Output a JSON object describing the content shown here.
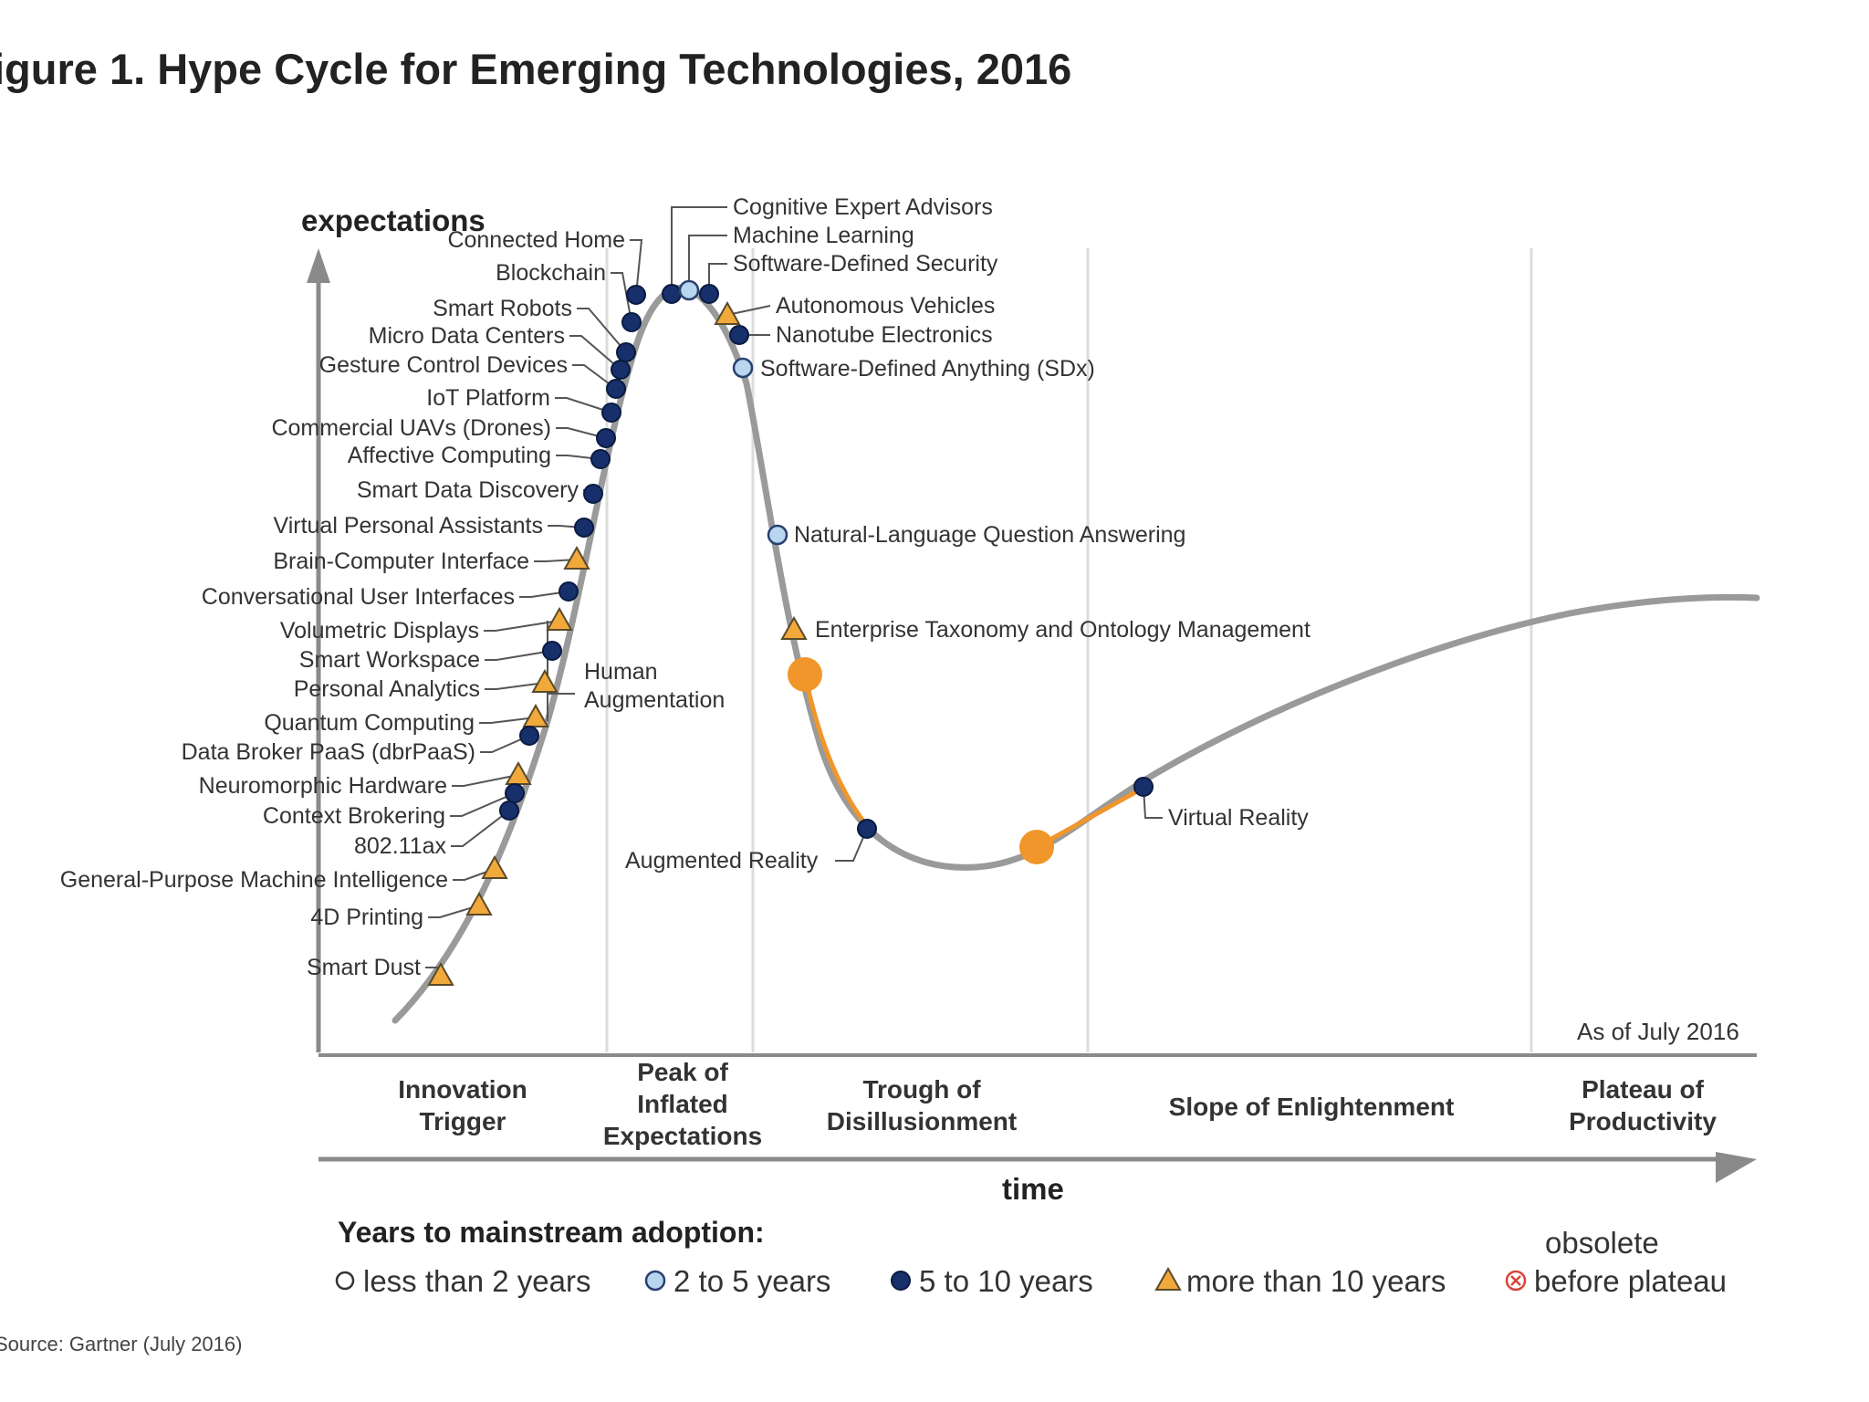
{
  "chart_data": {
    "type": "line",
    "title": "igure 1. Hype Cycle for Emerging Technologies, 2016",
    "ylabel": "expectations",
    "xlabel": "time",
    "as_of": "As of July 2016",
    "source": "Source: Gartner (July 2016)",
    "annotation_group": [
      "Human",
      "Augmentation"
    ],
    "phases": [
      {
        "lines": [
          "Innovation",
          "Trigger"
        ]
      },
      {
        "lines": [
          "Peak of",
          "Inflated",
          "Expectations"
        ]
      },
      {
        "lines": [
          "Trough of",
          "Disillusionment"
        ]
      },
      {
        "lines": [
          "Slope of Enlightenment"
        ]
      },
      {
        "lines": [
          "Plateau of",
          "Productivity"
        ]
      }
    ],
    "legend": {
      "title": "Years to mainstream adoption:",
      "items": [
        {
          "label": "less than 2 years",
          "marker": "hollow-circle"
        },
        {
          "label": "2 to 5 years",
          "marker": "light-circle"
        },
        {
          "label": "5 to 10 years",
          "marker": "dark-circle"
        },
        {
          "label": "more than 10 years",
          "marker": "triangle"
        },
        {
          "label": "obsolete",
          "label2": "before plateau",
          "marker": "x-circle"
        }
      ]
    },
    "technologies_innovation_trigger": [
      {
        "name": "Connected Home",
        "adoption": "5 to 10 years"
      },
      {
        "name": "Blockchain",
        "adoption": "5 to 10 years"
      },
      {
        "name": "Smart Robots",
        "adoption": "5 to 10 years"
      },
      {
        "name": "Micro Data Centers",
        "adoption": "5 to 10 years"
      },
      {
        "name": "Gesture Control Devices",
        "adoption": "5 to 10 years"
      },
      {
        "name": "IoT Platform",
        "adoption": "5 to 10 years"
      },
      {
        "name": "Commercial UAVs (Drones)",
        "adoption": "5 to 10 years"
      },
      {
        "name": "Affective Computing",
        "adoption": "5 to 10 years"
      },
      {
        "name": "Smart Data Discovery",
        "adoption": "5 to 10 years"
      },
      {
        "name": "Virtual Personal Assistants",
        "adoption": "5 to 10 years"
      },
      {
        "name": "Brain-Computer Interface",
        "adoption": "more than 10 years"
      },
      {
        "name": "Conversational User Interfaces",
        "adoption": "5 to 10 years"
      },
      {
        "name": "Volumetric Displays",
        "adoption": "more than 10 years"
      },
      {
        "name": "Smart Workspace",
        "adoption": "5 to 10 years"
      },
      {
        "name": "Personal Analytics",
        "adoption": "more than 10 years"
      },
      {
        "name": "Quantum Computing",
        "adoption": "more than 10 years"
      },
      {
        "name": "Data Broker PaaS (dbrPaaS)",
        "adoption": "5 to 10 years"
      },
      {
        "name": "Neuromorphic Hardware",
        "adoption": "more than 10 years"
      },
      {
        "name": "Context Brokering",
        "adoption": "5 to 10 years"
      },
      {
        "name": "802.11ax",
        "adoption": "5 to 10 years"
      },
      {
        "name": "General-Purpose Machine Intelligence",
        "adoption": "more than 10 years"
      },
      {
        "name": "4D Printing",
        "adoption": "more than 10 years"
      },
      {
        "name": "Smart Dust",
        "adoption": "more than 10 years"
      }
    ],
    "technologies_peak_and_slide": [
      {
        "name": "Cognitive Expert Advisors",
        "adoption": "5 to 10 years"
      },
      {
        "name": "Machine Learning",
        "adoption": "2 to 5 years"
      },
      {
        "name": "Software-Defined Security",
        "adoption": "5 to 10 years"
      },
      {
        "name": "Autonomous Vehicles",
        "adoption": "more than 10 years"
      },
      {
        "name": "Nanotube Electronics",
        "adoption": "5 to 10 years"
      },
      {
        "name": "Software-Defined Anything (SDx)",
        "adoption": "2 to 5 years"
      },
      {
        "name": "Natural-Language Question Answering",
        "adoption": "2 to 5 years"
      },
      {
        "name": "Enterprise Taxonomy and Ontology Management",
        "adoption": "more than 10 years"
      },
      {
        "name": "Augmented Reality",
        "adoption": "5 to 10 years"
      },
      {
        "name": "Virtual Reality",
        "adoption": "5 to 10 years"
      }
    ],
    "annotation_color": "#f0962a",
    "colors": {
      "dark": "#17306b",
      "light": "#b8d6ef",
      "triangle": "#f2a93b",
      "curve": "#9a9a9a",
      "grid": "#dcdcdc"
    }
  }
}
